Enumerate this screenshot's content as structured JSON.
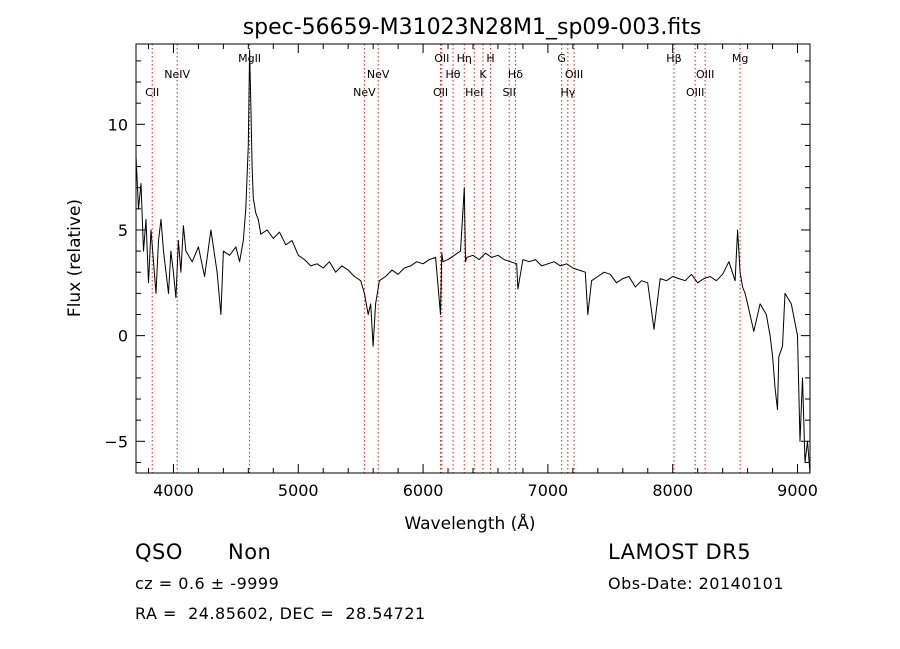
{
  "title": "spec-56659-M31023N28M1_sp09-003.fits",
  "info": {
    "class": "QSO",
    "subclass": "Non",
    "survey": "LAMOST DR5",
    "cz": "cz = 0.6 ± -9999",
    "obsdate": "Obs-Date: 20140101",
    "radec": "RA =  24.85602, DEC =  28.54721"
  },
  "chart_data": {
    "type": "line",
    "title": "spec-56659-M31023N28M1_sp09-003.fits",
    "xlabel": "Wavelength (Å)",
    "ylabel": "Flux (relative)",
    "xlim": [
      3700,
      9100
    ],
    "ylim": [
      -6.5,
      13.8
    ],
    "xticks": [
      4000,
      5000,
      6000,
      7000,
      8000,
      9000
    ],
    "yticks": [
      -5,
      0,
      5,
      10
    ],
    "line_color": "#000000",
    "marker_color": "#cc2222",
    "series": [
      {
        "x": [
          3700,
          3720,
          3740,
          3760,
          3780,
          3800,
          3820,
          3840,
          3860,
          3880,
          3900,
          3920,
          3940,
          3960,
          3980,
          4000,
          4020,
          4040,
          4060,
          4080,
          4100,
          4150,
          4200,
          4250,
          4300,
          4350,
          4380,
          4400,
          4450,
          4500,
          4530,
          4560,
          4580,
          4600,
          4610,
          4620,
          4630,
          4640,
          4660,
          4680,
          4700,
          4750,
          4800,
          4850,
          4900,
          4950,
          5000,
          5050,
          5100,
          5150,
          5200,
          5250,
          5300,
          5350,
          5400,
          5450,
          5500,
          5530,
          5560,
          5580,
          5600,
          5620,
          5650,
          5700,
          5750,
          5800,
          5850,
          5900,
          5950,
          6000,
          6050,
          6100,
          6140,
          6150,
          6160,
          6200,
          6250,
          6300,
          6330,
          6340,
          6350,
          6400,
          6450,
          6500,
          6550,
          6600,
          6650,
          6700,
          6750,
          6760,
          6800,
          6850,
          6900,
          6950,
          7000,
          7050,
          7100,
          7150,
          7200,
          7250,
          7300,
          7320,
          7350,
          7400,
          7450,
          7500,
          7550,
          7600,
          7650,
          7700,
          7750,
          7800,
          7850,
          7900,
          7950,
          8000,
          8050,
          8100,
          8150,
          8200,
          8250,
          8300,
          8350,
          8400,
          8450,
          8500,
          8520,
          8540,
          8560,
          8580,
          8600,
          8650,
          8700,
          8750,
          8780,
          8800,
          8820,
          8840,
          8850,
          8880,
          8900,
          8950,
          9000,
          9020,
          9040,
          9060,
          9080,
          9100
        ],
        "y": [
          8.5,
          6.0,
          7.2,
          4.0,
          5.5,
          2.5,
          5.0,
          3.5,
          2.0,
          4.5,
          5.5,
          4.0,
          3.0,
          2.0,
          4.0,
          3.0,
          1.8,
          4.5,
          3.0,
          5.2,
          4.0,
          3.5,
          4.2,
          2.8,
          5.0,
          3.0,
          1.0,
          4.0,
          3.8,
          4.2,
          3.5,
          4.5,
          6.0,
          9.0,
          13.5,
          11.0,
          8.0,
          6.5,
          5.8,
          5.5,
          4.8,
          5.0,
          4.6,
          4.9,
          4.3,
          4.5,
          3.8,
          3.6,
          3.3,
          3.4,
          3.2,
          3.5,
          3.0,
          3.3,
          3.1,
          2.8,
          2.6,
          2.0,
          1.0,
          1.5,
          -0.5,
          1.5,
          2.6,
          2.8,
          3.1,
          2.9,
          3.2,
          3.3,
          3.5,
          3.4,
          3.6,
          3.7,
          1.0,
          3.9,
          3.5,
          3.6,
          3.8,
          4.0,
          7.0,
          3.5,
          3.7,
          3.8,
          3.6,
          3.9,
          3.7,
          3.8,
          3.6,
          3.5,
          3.4,
          2.2,
          3.6,
          3.5,
          3.6,
          3.3,
          3.4,
          3.5,
          3.3,
          3.4,
          3.2,
          3.1,
          3.0,
          1.0,
          2.6,
          2.8,
          3.0,
          2.9,
          2.5,
          2.7,
          2.8,
          2.3,
          2.6,
          2.5,
          0.3,
          2.7,
          2.6,
          2.8,
          2.7,
          2.6,
          2.9,
          2.5,
          2.7,
          2.8,
          2.6,
          2.9,
          3.5,
          2.6,
          5.0,
          3.0,
          2.3,
          2.0,
          1.5,
          0.2,
          1.5,
          1.0,
          0.0,
          -1.0,
          -2.5,
          -3.5,
          -1.0,
          -0.5,
          2.0,
          1.5,
          0.0,
          -5.0,
          -2.0,
          -6.0,
          -5.0,
          -6.5
        ]
      }
    ],
    "lines": [
      {
        "name": "CII",
        "wl": 3830,
        "row": 3
      },
      {
        "name": "NeIV",
        "wl": 4030,
        "row": 2
      },
      {
        "name": "MgII",
        "wl": 4610,
        "row": 1
      },
      {
        "name": "NeV",
        "wl": 5530,
        "row": 3
      },
      {
        "name": "NeV",
        "wl": 5640,
        "row": 2
      },
      {
        "name": "OII",
        "wl": 6140,
        "row": 3
      },
      {
        "name": "OII",
        "wl": 6150,
        "row": 1
      },
      {
        "name": "Hθ",
        "wl": 6240,
        "row": 2
      },
      {
        "name": "Hη",
        "wl": 6330,
        "row": 1
      },
      {
        "name": "HeI",
        "wl": 6410,
        "row": 3
      },
      {
        "name": "K",
        "wl": 6480,
        "row": 2
      },
      {
        "name": "H",
        "wl": 6540,
        "row": 1
      },
      {
        "name": "SII",
        "wl": 6690,
        "row": 3
      },
      {
        "name": "Hδ",
        "wl": 6740,
        "row": 2
      },
      {
        "name": "G",
        "wl": 7110,
        "row": 1
      },
      {
        "name": "Hγ",
        "wl": 7160,
        "row": 3
      },
      {
        "name": "OIII",
        "wl": 7210,
        "row": 2
      },
      {
        "name": "Hβ",
        "wl": 8010,
        "row": 1
      },
      {
        "name": "OIII",
        "wl": 8180,
        "row": 3
      },
      {
        "name": "OIII",
        "wl": 8260,
        "row": 2
      },
      {
        "name": "Mg",
        "wl": 8540,
        "row": 1
      }
    ]
  }
}
